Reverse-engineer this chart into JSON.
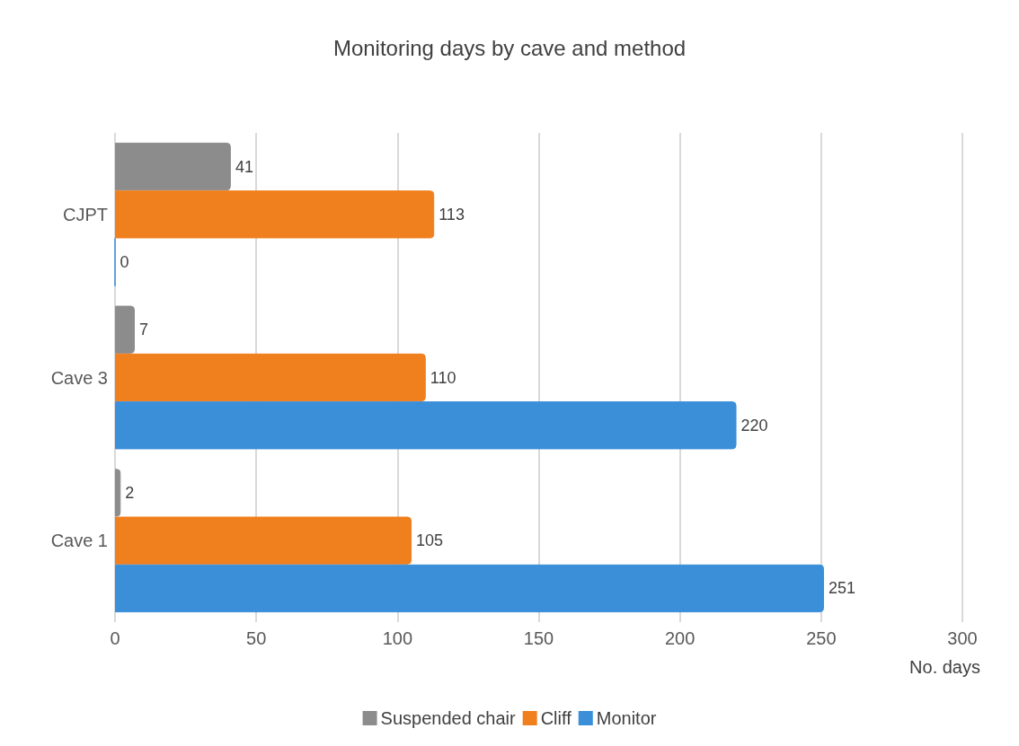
{
  "chart_data": {
    "type": "bar",
    "orientation": "horizontal",
    "title": "Monitoring days by cave and method",
    "xlabel": "No. days",
    "categories": [
      "CJPT",
      "Cave 3",
      "Cave 1"
    ],
    "series": [
      {
        "name": "Suspended chair",
        "color": "#8c8c8c",
        "values": [
          41,
          7,
          2
        ]
      },
      {
        "name": "Cliff",
        "color": "#f07f1e",
        "values": [
          113,
          110,
          105
        ]
      },
      {
        "name": "Monitor",
        "color": "#3a8fd8",
        "values": [
          0,
          220,
          251
        ]
      }
    ],
    "xlim": [
      0,
      300
    ],
    "xticks": [
      0,
      50,
      100,
      150,
      200,
      250,
      300
    ],
    "grid": "x",
    "legend": "bottom",
    "data_labels": true
  }
}
